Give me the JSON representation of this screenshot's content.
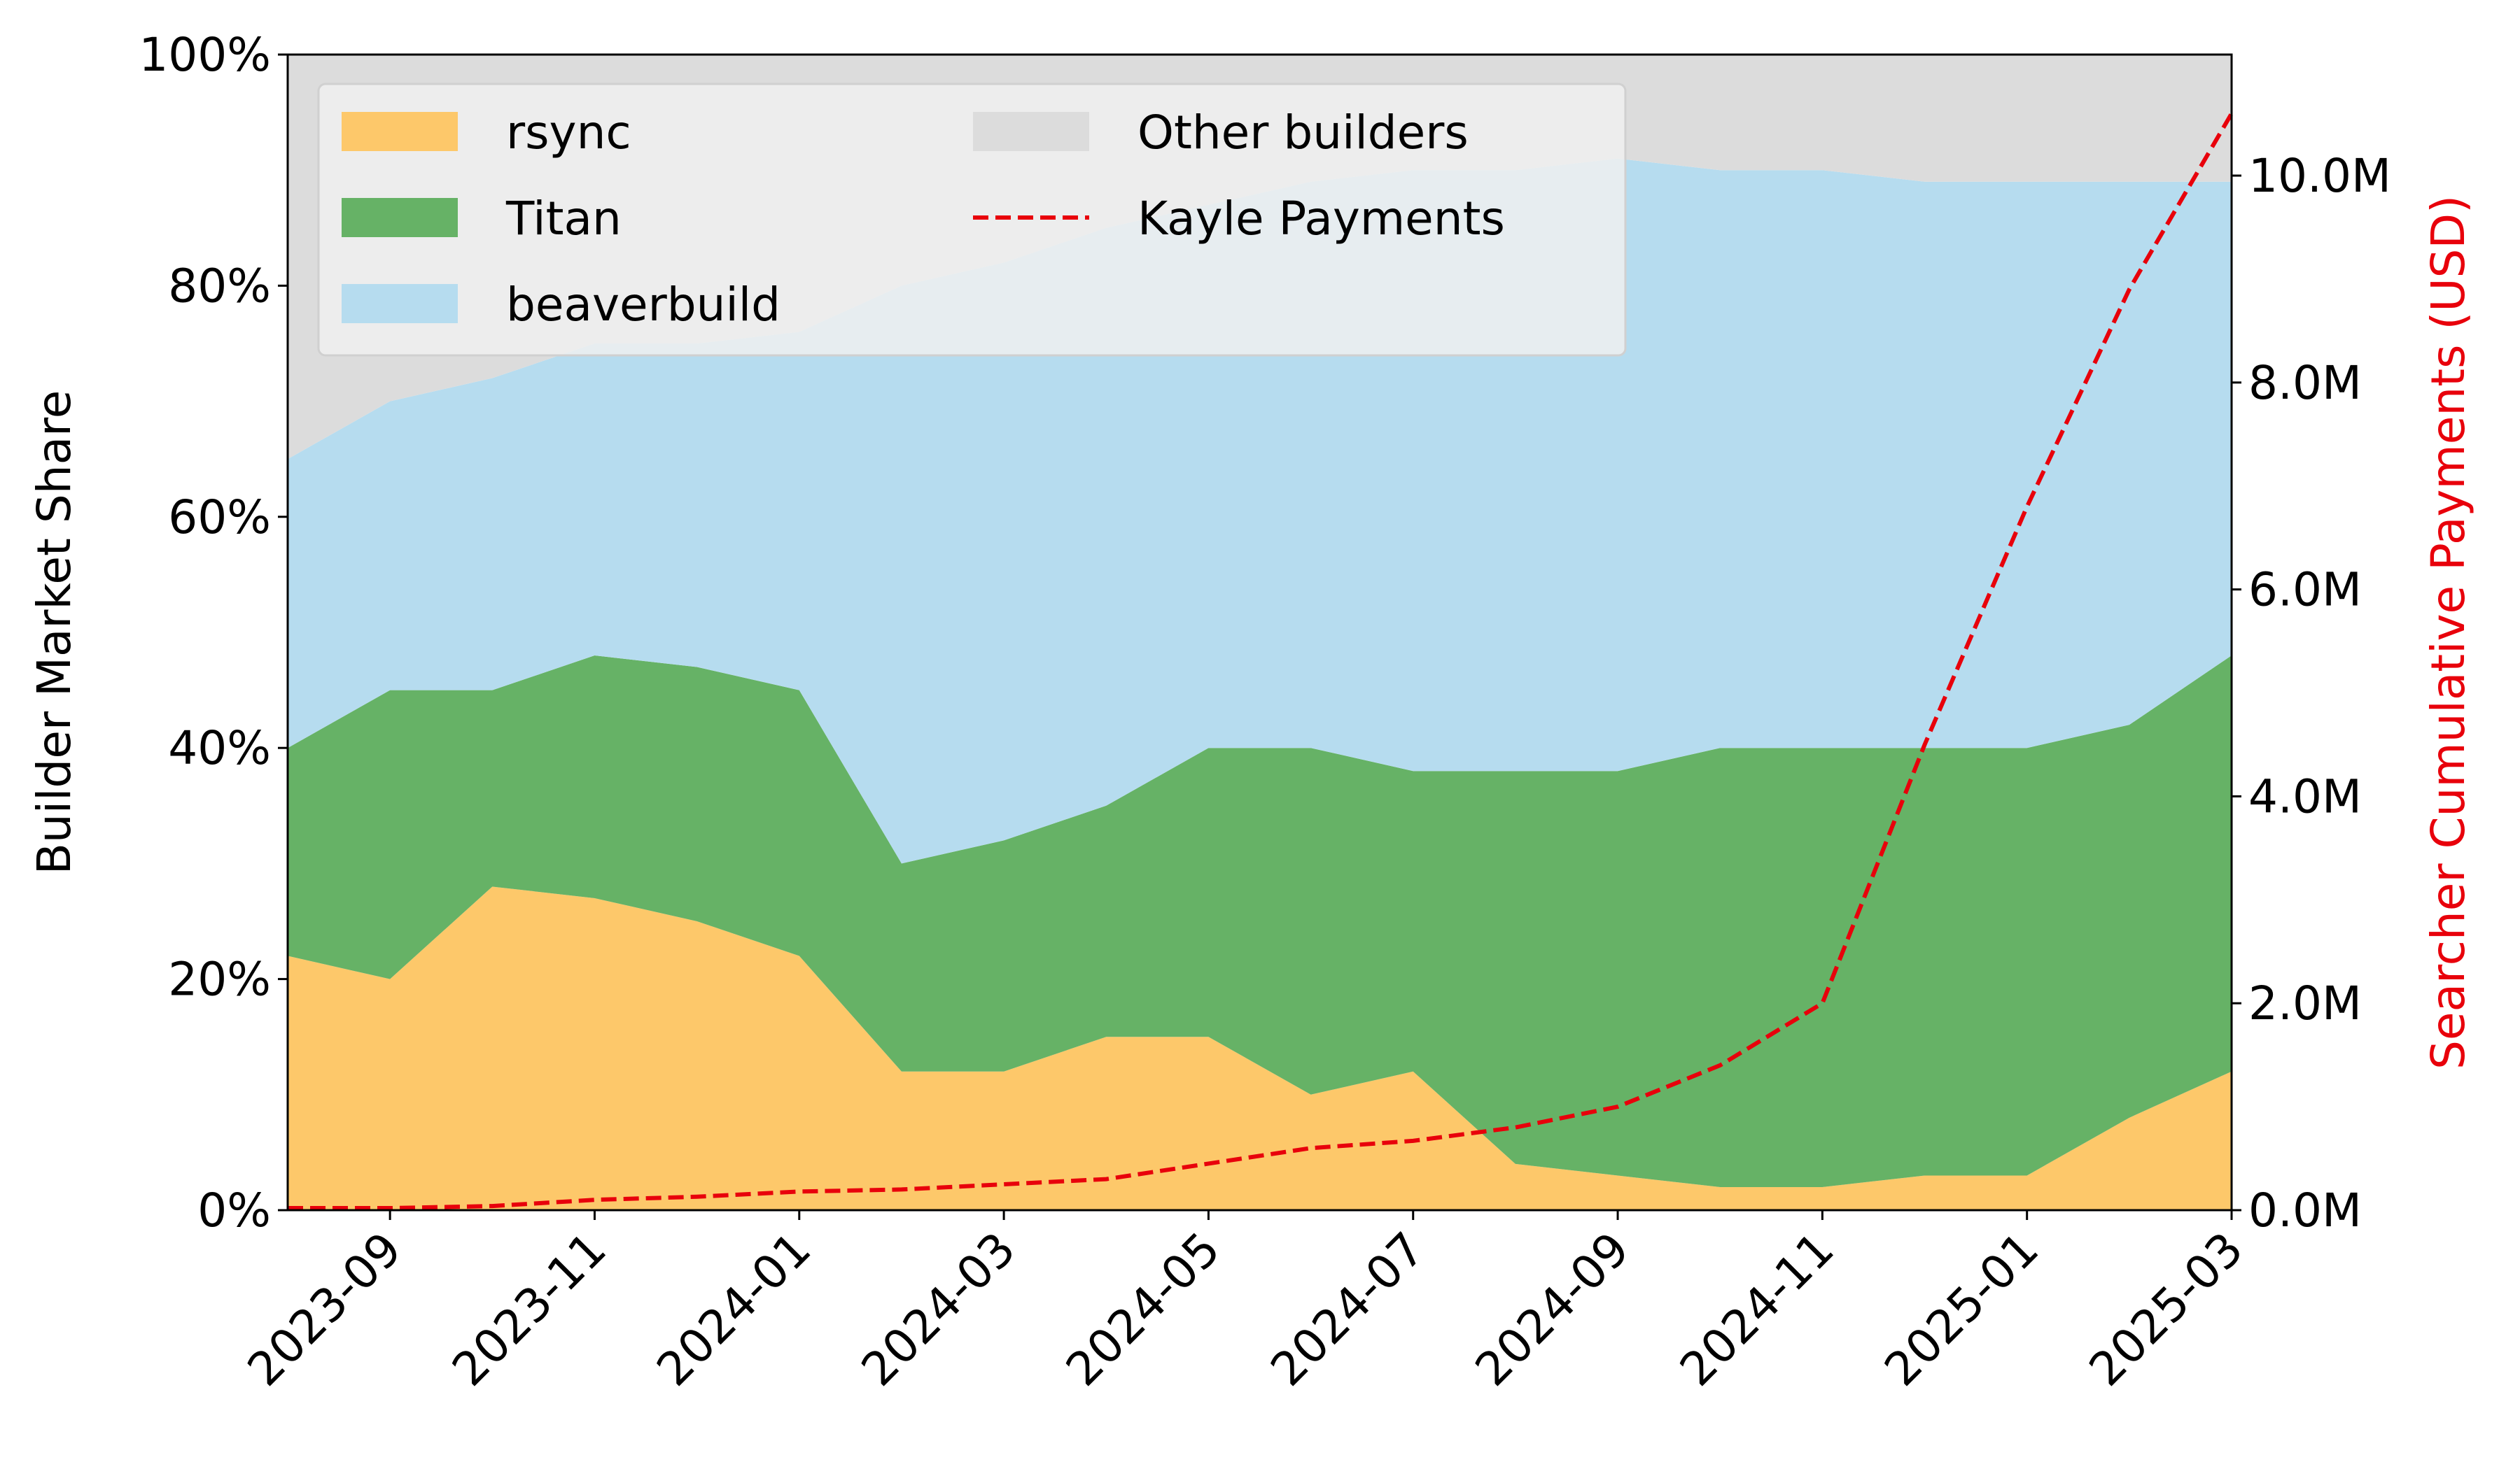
{
  "chart_data": {
    "type": "area",
    "stacked": true,
    "ylabel": "Builder Market Share",
    "y2label": "Searcher Cumulative Payments (USD)",
    "x": [
      "2023-08",
      "2023-09",
      "2023-10",
      "2023-11",
      "2023-12",
      "2024-01",
      "2024-02",
      "2024-03",
      "2024-04",
      "2024-05",
      "2024-06",
      "2024-07",
      "2024-08",
      "2024-09",
      "2024-10",
      "2024-11",
      "2024-12",
      "2025-01",
      "2025-02",
      "2025-03"
    ],
    "xlim": [
      "2023-08",
      "2025-03"
    ],
    "xticks": [
      "2023-09",
      "2023-11",
      "2024-01",
      "2024-03",
      "2024-05",
      "2024-07",
      "2024-09",
      "2024-11",
      "2025-01",
      "2025-03"
    ],
    "ylim": [
      0,
      100
    ],
    "yticks": [
      {
        "value": 0,
        "label": "0%"
      },
      {
        "value": 20,
        "label": "20%"
      },
      {
        "value": 40,
        "label": "40%"
      },
      {
        "value": 60,
        "label": "60%"
      },
      {
        "value": 80,
        "label": "80%"
      },
      {
        "value": 100,
        "label": "100%"
      }
    ],
    "y2lim": [
      0,
      11.17
    ],
    "y2ticks": [
      {
        "value": 0,
        "label": "0.0M"
      },
      {
        "value": 2,
        "label": "2.0M"
      },
      {
        "value": 4,
        "label": "4.0M"
      },
      {
        "value": 6,
        "label": "6.0M"
      },
      {
        "value": 8,
        "label": "8.0M"
      },
      {
        "value": 10,
        "label": "10.0M"
      }
    ],
    "legend": "upper left",
    "series": [
      {
        "name": "rsync",
        "color": "#fdc86a",
        "values": [
          22,
          20,
          28,
          27,
          25,
          22,
          12,
          12,
          15,
          15,
          10,
          12,
          4,
          3,
          2,
          2,
          3,
          3,
          8,
          12
        ]
      },
      {
        "name": "Titan",
        "color": "#66b266",
        "values": [
          18,
          25,
          17,
          21,
          22,
          23,
          18,
          20,
          20,
          25,
          30,
          26,
          34,
          35,
          38,
          38,
          37,
          37,
          34,
          36
        ]
      },
      {
        "name": "beaverbuild",
        "color": "#b6dcef",
        "values": [
          25,
          25,
          27,
          27,
          28,
          31,
          50,
          50,
          50,
          47,
          49,
          52,
          52,
          53,
          50,
          50,
          49,
          49,
          47,
          41
        ]
      },
      {
        "name": "Other builders",
        "color": "#dcdcdc",
        "values": [
          35,
          30,
          28,
          25,
          25,
          24,
          20,
          18,
          15,
          13,
          11,
          10,
          10,
          9,
          10,
          10,
          11,
          11,
          11,
          11
        ]
      },
      {
        "name": "Kayle Payments",
        "color": "#e8000b",
        "axis": "y2",
        "dashed": true,
        "values": [
          0.02,
          0.02,
          0.04,
          0.1,
          0.13,
          0.18,
          0.2,
          0.25,
          0.3,
          0.45,
          0.6,
          0.67,
          0.8,
          1.0,
          1.4,
          2.0,
          4.5,
          6.8,
          8.9,
          10.6
        ]
      }
    ]
  }
}
